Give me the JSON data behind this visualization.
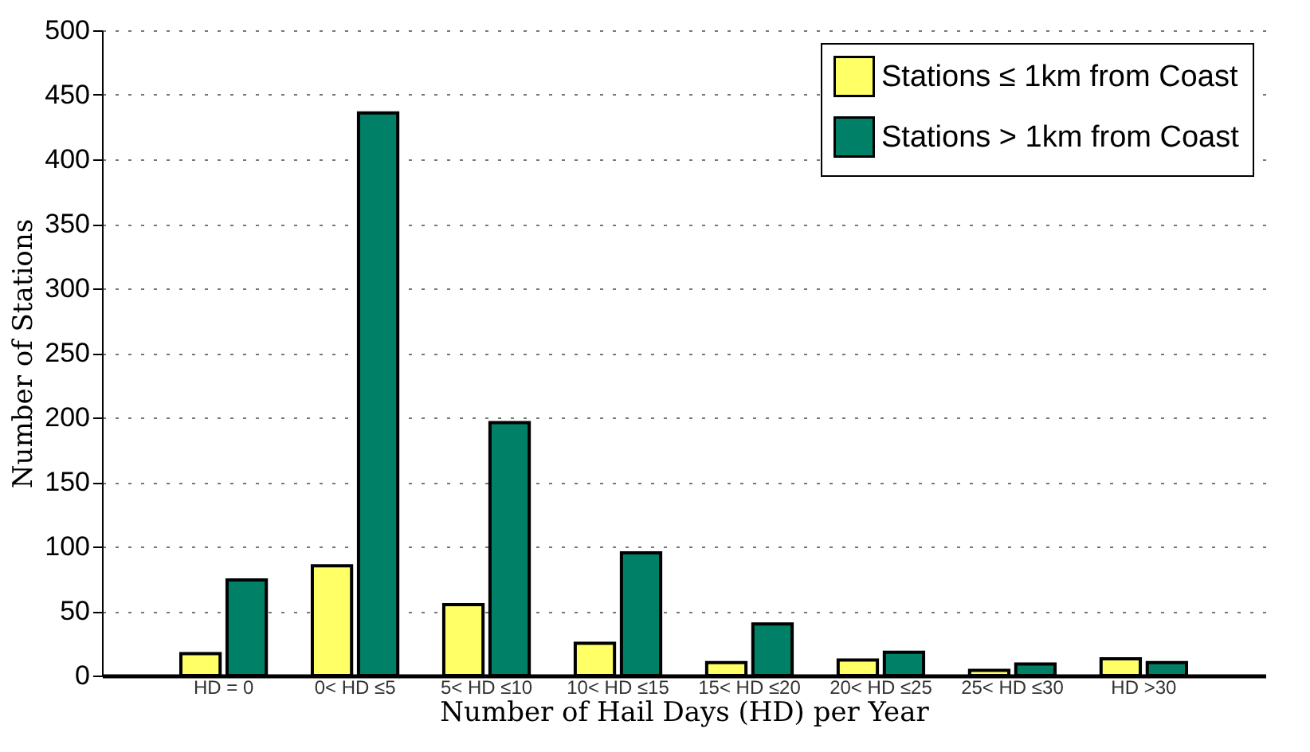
{
  "chart_data": {
    "type": "bar",
    "xlabel": "Number of Hail Days (HD) per Year",
    "ylabel": "Number of Stations",
    "categories": [
      "HD = 0",
      "0< HD ≤5",
      "5< HD ≤10",
      "10< HD ≤15",
      "15< HD ≤20",
      "20< HD ≤25",
      "25< HD ≤30",
      "HD >30"
    ],
    "series": [
      {
        "name": "Stations ≤ 1km from Coast",
        "color": "#ffff66",
        "values": [
          17,
          85,
          55,
          25,
          10,
          12,
          4,
          13
        ]
      },
      {
        "name": "Stations > 1km from Coast",
        "color": "#008066",
        "values": [
          74,
          436,
          196,
          95,
          40,
          18,
          9,
          10
        ]
      }
    ],
    "ylim": [
      0,
      500
    ],
    "yticks": [
      0,
      50,
      100,
      150,
      200,
      250,
      300,
      350,
      400,
      450,
      500
    ],
    "grid": "y",
    "legend": "top right"
  }
}
